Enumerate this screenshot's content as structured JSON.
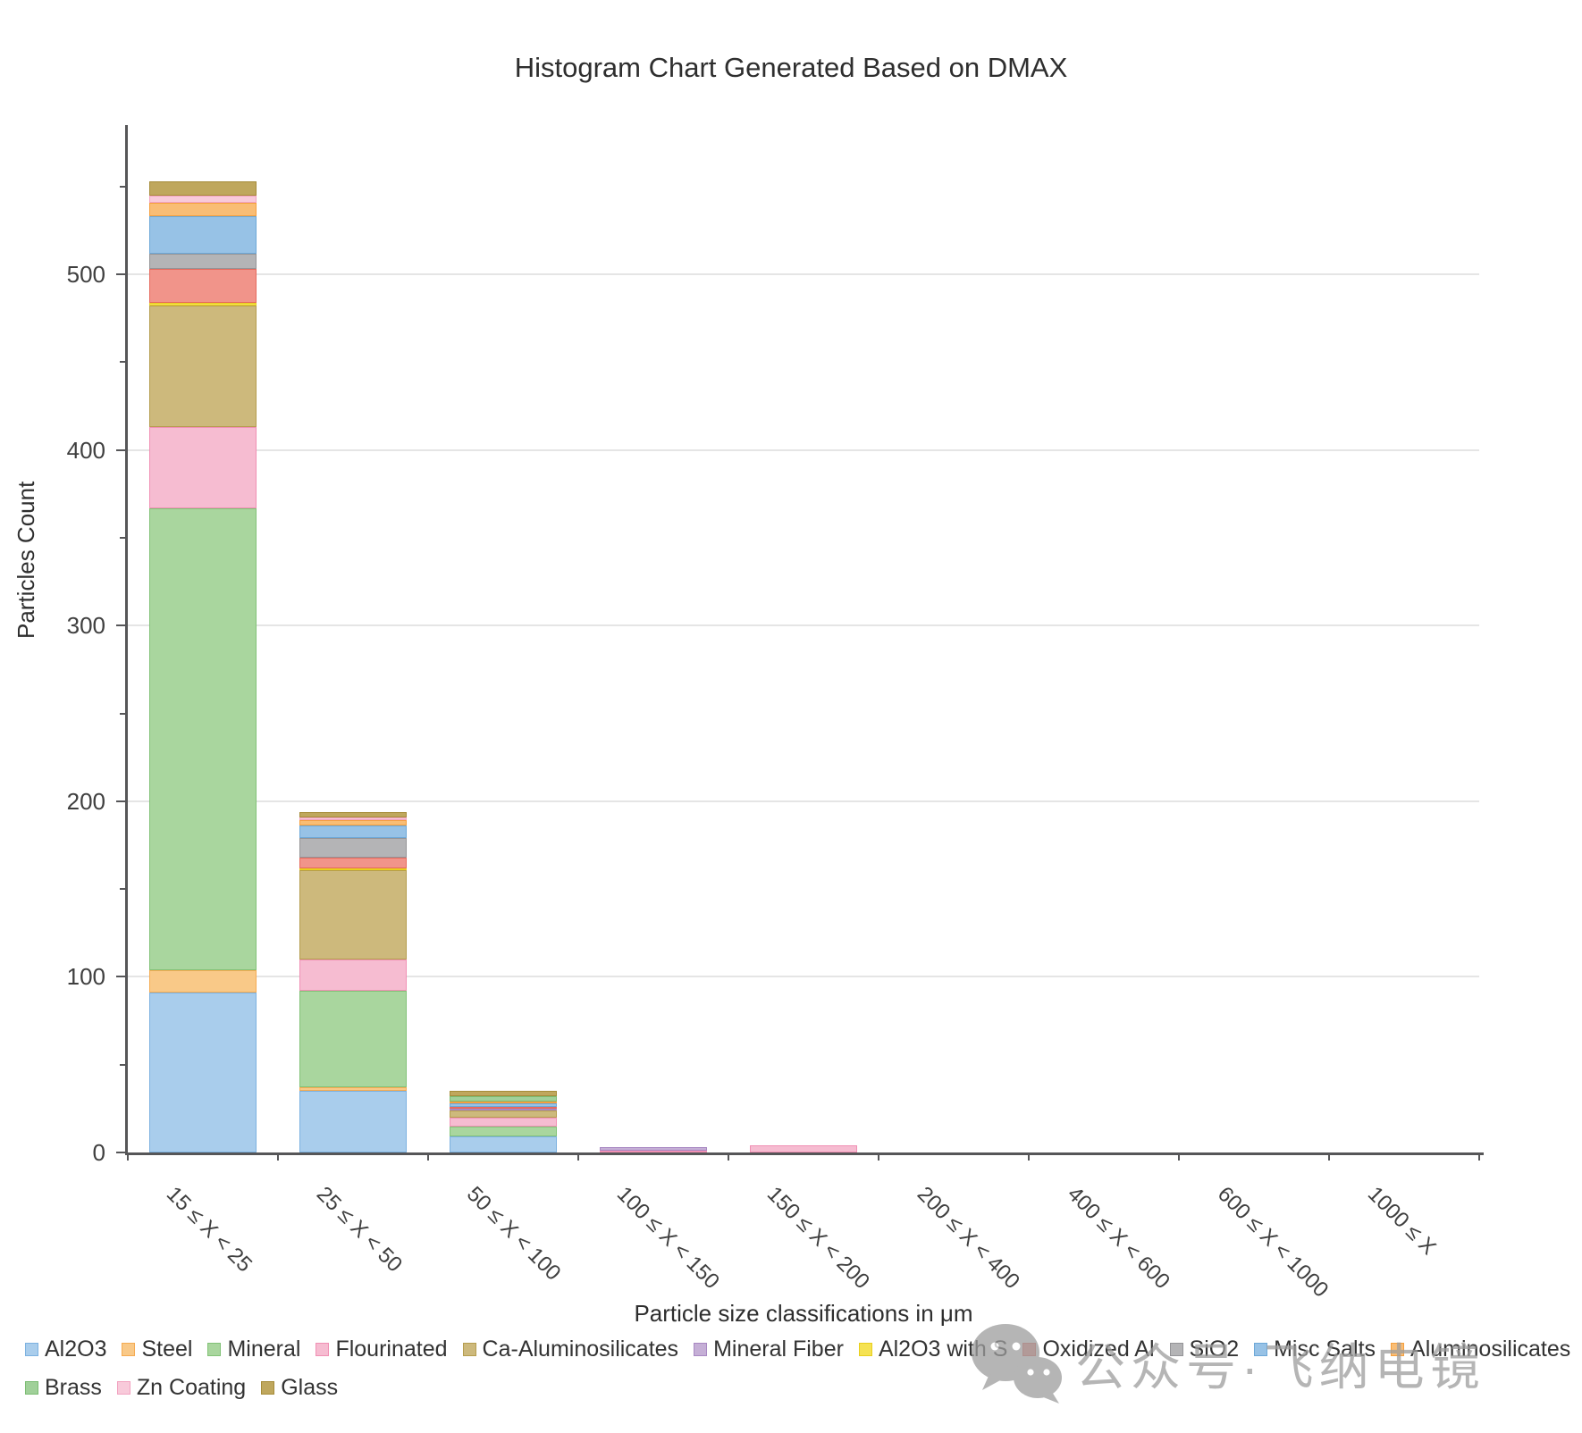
{
  "title": "Histogram Chart Generated Based on DMAX",
  "watermark": {
    "icon": "wechat-icon",
    "text": "公众号·飞纳电镜"
  },
  "chart_data": {
    "type": "bar",
    "stacked": true,
    "grid": "horizontal-major",
    "legend_position": "bottom-left-two-rows",
    "title": "Histogram Chart Generated Based on DMAX",
    "xlabel": "Particle size classifications in μm",
    "ylabel": "Particles Count",
    "ylim": [
      0,
      585
    ],
    "yticks": [
      0,
      100,
      200,
      300,
      400,
      500
    ],
    "ytick_minor_interval": 50,
    "categories": [
      "15 ≤ X < 25",
      "25 ≤ X < 50",
      "50 ≤ X < 100",
      "100 ≤ X < 150",
      "150 ≤ X < 200",
      "200 ≤ X < 400",
      "400 ≤ X < 600",
      "600 ≤ X < 1000",
      "1000 ≤ X"
    ],
    "legend_rows": [
      11,
      3
    ],
    "series": [
      {
        "name": "Al2O3",
        "fill": "#a9cdec",
        "border": "#7cb1e0",
        "values": [
          91,
          35,
          9,
          0,
          0,
          0,
          0,
          0,
          0
        ]
      },
      {
        "name": "Steel",
        "fill": "#f9c988",
        "border": "#f5ab52",
        "values": [
          13,
          2,
          0,
          0,
          0,
          0,
          0,
          0,
          0
        ]
      },
      {
        "name": "Mineral",
        "fill": "#a9d69e",
        "border": "#82c277",
        "values": [
          263,
          55,
          6,
          0,
          0,
          0,
          0,
          0,
          0
        ]
      },
      {
        "name": "Flourinated",
        "fill": "#f6bcd1",
        "border": "#f090b4",
        "values": [
          46,
          18,
          5,
          1,
          4,
          0,
          0,
          0,
          0
        ]
      },
      {
        "name": "Ca-Aluminosilicates",
        "fill": "#cdb97c",
        "border": "#b59d4e",
        "values": [
          69,
          51,
          4,
          0,
          0,
          0,
          0,
          0,
          0
        ]
      },
      {
        "name": "Mineral Fiber",
        "fill": "#c5afd6",
        "border": "#a888c2",
        "values": [
          0,
          0,
          1,
          2,
          0,
          0,
          0,
          0,
          0
        ]
      },
      {
        "name": "Al2O3 with S",
        "fill": "#f5e253",
        "border": "#e8cf1e",
        "values": [
          2,
          1,
          0,
          0,
          0,
          0,
          0,
          0,
          0
        ]
      },
      {
        "name": "Oxidized Al",
        "fill": "#f1948a",
        "border": "#e66a5e",
        "values": [
          19,
          6,
          1,
          0,
          0,
          0,
          0,
          0,
          0
        ]
      },
      {
        "name": "SiO2",
        "fill": "#b4b4b6",
        "border": "#949497",
        "values": [
          9,
          11,
          0,
          0,
          0,
          0,
          0,
          0,
          0
        ]
      },
      {
        "name": "Misc Salts",
        "fill": "#97c2e6",
        "border": "#6da8d8",
        "values": [
          21,
          7,
          2,
          0,
          0,
          0,
          0,
          0,
          0
        ]
      },
      {
        "name": "Aluminosilicates",
        "fill": "#f9bd75",
        "border": "#f59f3d",
        "values": [
          8,
          3,
          1,
          0,
          0,
          0,
          0,
          0,
          0
        ]
      },
      {
        "name": "Brass",
        "fill": "#a0d099",
        "border": "#7bbc72",
        "values": [
          0,
          0,
          3,
          0,
          0,
          0,
          0,
          0,
          0
        ]
      },
      {
        "name": "Zn Coating",
        "fill": "#f8cada",
        "border": "#f2a2c0",
        "values": [
          4,
          2,
          0,
          0,
          0,
          0,
          0,
          0,
          0
        ]
      },
      {
        "name": "Glass",
        "fill": "#bfa75d",
        "border": "#a68c39",
        "values": [
          8,
          3,
          3,
          0,
          0,
          0,
          0,
          0,
          0
        ]
      }
    ]
  }
}
